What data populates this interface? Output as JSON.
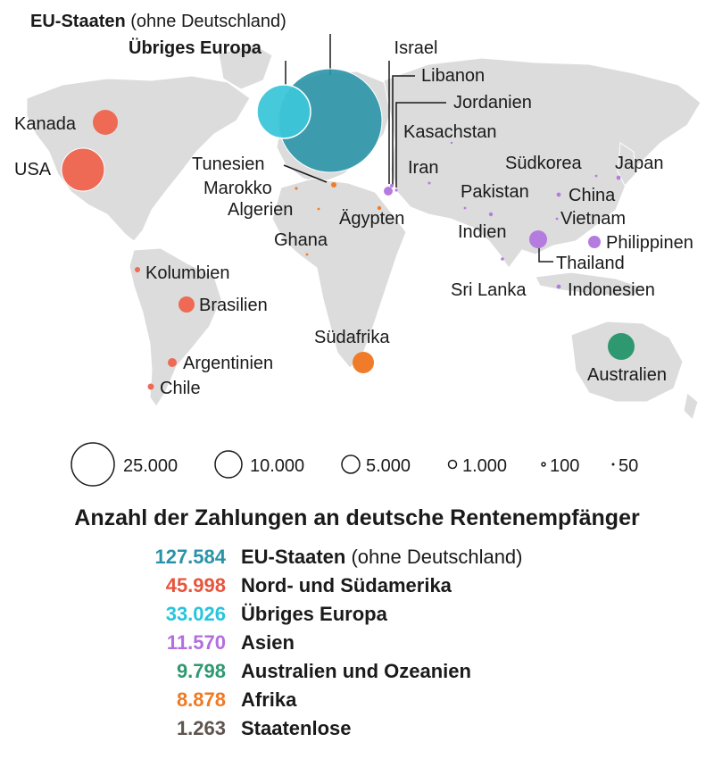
{
  "map": {
    "title_eu": "EU-Staaten",
    "title_eu_note": "(ohne Deutschland)",
    "title_europe": "Übriges Europa",
    "colors": {
      "eu": "#2b93a8",
      "europe": "#3cc6d8",
      "america": "#ee6a55",
      "asia": "#b57ce0",
      "oceania": "#2e9970",
      "africa": "#f07c2a",
      "land": "#dcdcdc",
      "border": "#ffffff"
    },
    "labels": {
      "israel": "Israel",
      "libanon": "Libanon",
      "jordanien": "Jordanien",
      "kasachstan": "Kasachstan",
      "iran": "Iran",
      "kanada": "Kanada",
      "usa": "USA",
      "tunesien": "Tunesien",
      "marokko": "Marokko",
      "algerien": "Algerien",
      "aegypten": "Ägypten",
      "ghana": "Ghana",
      "suedkorea": "Südkorea",
      "japan": "Japan",
      "pakistan": "Pakistan",
      "china": "China",
      "vietnam": "Vietnam",
      "indien": "Indien",
      "philippinen": "Philippinen",
      "thailand": "Thailand",
      "sri_lanka": "Sri Lanka",
      "indonesien": "Indonesien",
      "kolumbien": "Kolumbien",
      "brasilien": "Brasilien",
      "argentinien": "Argentinien",
      "chile": "Chile",
      "suedafrika": "Südafrika",
      "australien": "Australien"
    }
  },
  "size_legend": [
    {
      "value": 25000,
      "label": "25.000"
    },
    {
      "value": 10000,
      "label": "10.000"
    },
    {
      "value": 5000,
      "label": "5.000"
    },
    {
      "value": 1000,
      "label": "1.000"
    },
    {
      "value": 100,
      "label": "100"
    },
    {
      "value": 50,
      "label": "50"
    }
  ],
  "summary": {
    "title": "Anzahl der Zahlungen an deutsche Rentenempfänger",
    "rows": [
      {
        "count": "127.584",
        "name": "EU-Staaten",
        "note": "(ohne Deutschland)",
        "color": "#2b93a8"
      },
      {
        "count": "45.998",
        "name": "Nord- und Südamerika",
        "note": "",
        "color": "#e8553d"
      },
      {
        "count": "33.026",
        "name": "Übriges Europa",
        "note": "",
        "color": "#28c4dc"
      },
      {
        "count": "11.570",
        "name": "Asien",
        "note": "",
        "color": "#b36ee0"
      },
      {
        "count": "9.798",
        "name": "Australien und Ozeanien",
        "note": "",
        "color": "#2e9970"
      },
      {
        "count": "8.878",
        "name": "Afrika",
        "note": "",
        "color": "#ef7a22"
      },
      {
        "count": "1.263",
        "name": "Staatenlose",
        "note": "",
        "color": "#5e5450"
      }
    ]
  }
}
